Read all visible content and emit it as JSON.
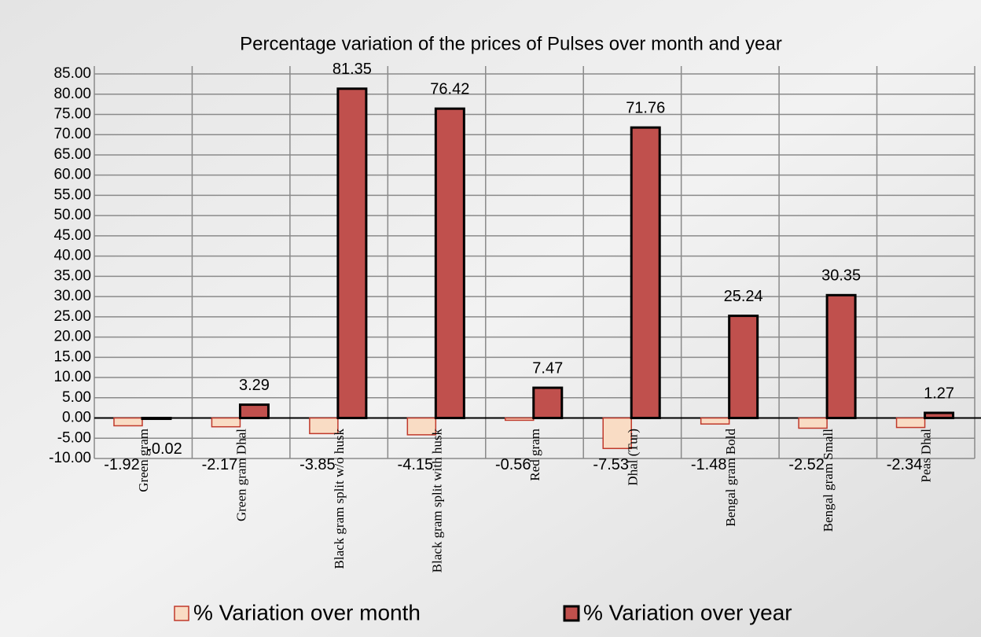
{
  "chart_data": {
    "type": "bar",
    "title": "Percentage variation of the prices of Pulses over month and year",
    "categories": [
      "Green gram",
      "Green gram Dhal",
      "Black gram  split w/o husk",
      "Black gram  split with husk",
      "Red gram",
      "Dhal (Tur)",
      "Bengal gram Bold",
      "Bengal gram Small",
      "Peas Dhal"
    ],
    "series": [
      {
        "name": "% Variation over month",
        "color": "#f9dcc4",
        "values": [
          -1.92,
          -2.17,
          -3.85,
          -4.15,
          -0.56,
          -7.53,
          -1.48,
          -2.52,
          -2.34
        ]
      },
      {
        "name": "% Variation over year",
        "color": "#c0504d",
        "values": [
          -0.02,
          3.29,
          81.35,
          76.42,
          7.47,
          71.76,
          25.24,
          30.35,
          1.27
        ]
      }
    ],
    "ylim": [
      -10,
      85
    ],
    "yticks": [
      {
        "value": -10,
        "label": "-10.00"
      },
      {
        "value": -5,
        "label": "-5.00"
      },
      {
        "value": 0,
        "label": "0.00"
      },
      {
        "value": 5,
        "label": "5.00"
      },
      {
        "value": 10,
        "label": "10.00"
      },
      {
        "value": 15,
        "label": "15.00"
      },
      {
        "value": 20,
        "label": "20.00"
      },
      {
        "value": 25,
        "label": "25.00"
      },
      {
        "value": 30,
        "label": "30.00"
      },
      {
        "value": 35,
        "label": "35.00"
      },
      {
        "value": 40,
        "label": "40.00"
      },
      {
        "value": 45,
        "label": "45.00"
      },
      {
        "value": 50,
        "label": "50.00"
      },
      {
        "value": 55,
        "label": "55.00"
      },
      {
        "value": 60,
        "label": "60.00"
      },
      {
        "value": 65,
        "label": "65.00"
      },
      {
        "value": 70,
        "label": "70.00"
      },
      {
        "value": 75,
        "label": "75.00"
      },
      {
        "value": 80,
        "label": "80.00"
      },
      {
        "value": 85,
        "label": "85.00"
      }
    ],
    "grid": true,
    "legend": "bottom"
  }
}
